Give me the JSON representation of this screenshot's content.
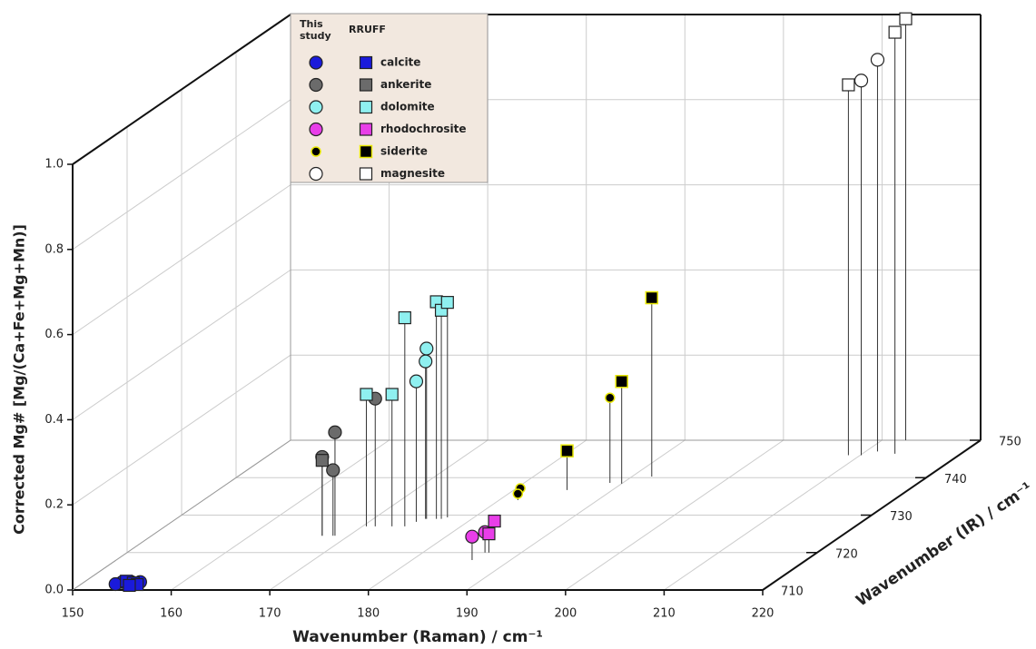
{
  "chart_data": {
    "type": "scatter3d",
    "xlabel": "Wavenumber (Raman) / cm⁻¹",
    "ylabel": "Wavenumber (IR) / cm⁻¹",
    "zlabel": "Corrected Mg# [Mg/(Ca+Fe+Mg+Mn)]",
    "xlim": [
      150,
      220
    ],
    "xticks": [
      150,
      160,
      170,
      180,
      190,
      200,
      210,
      220
    ],
    "ylim": [
      710,
      750
    ],
    "yticks": [
      710,
      720,
      730,
      740,
      750
    ],
    "zlim": [
      0,
      1
    ],
    "zticks": [
      {
        "value": 0,
        "label": "0.0"
      },
      {
        "value": 0.2,
        "label": "0.2"
      },
      {
        "value": 0.4,
        "label": "0.4"
      },
      {
        "value": 0.6,
        "label": "0.6"
      },
      {
        "value": 0.8,
        "label": "0.8"
      },
      {
        "value": 1,
        "label": "1.0"
      }
    ],
    "grid": true,
    "legend_headers": [
      "This study",
      "RRUFF"
    ],
    "series": [
      {
        "name": "calcite",
        "color": "#1a1adb",
        "this_study": {
          "x": [
            156.3,
            155.4,
            154.5,
            153.8
          ],
          "y": [
            711,
            711,
            711,
            711
          ],
          "z": [
            0.01,
            0.01,
            0.01,
            0.005
          ]
        },
        "rruff": {
          "x": [
            154.9,
            155.6,
            156.0,
            155.2
          ],
          "y": [
            711,
            711,
            711,
            711
          ],
          "z": [
            0.012,
            0.008,
            0.004,
            0.002
          ]
        }
      },
      {
        "name": "ankerite",
        "color": "#6b6b6b",
        "this_study": {
          "x": [
            171.3,
            168.6,
            167.3,
            168.4
          ],
          "y": [
            727,
            724.5,
            724.5,
            724.5
          ],
          "z": [
            0.3,
            0.243,
            0.185,
            0.154
          ]
        },
        "rruff": {
          "x": [
            167.3
          ],
          "y": [
            724.5
          ],
          "z": [
            0.177
          ]
        }
      },
      {
        "name": "dolomite",
        "color": "#8ff0f0",
        "this_study": {
          "x": [
            175.4,
            175.3,
            174.8
          ],
          "y": [
            729,
            729,
            728.2
          ],
          "z": [
            0.4,
            0.37,
            0.33
          ]
        },
        "rruff": {
          "x": [
            174.3,
            176.4,
            176.9,
            177.3,
            173.0,
            170.4
          ],
          "y": [
            727,
            729,
            729,
            729.4,
            727,
            727
          ],
          "z": [
            0.49,
            0.51,
            0.49,
            0.505,
            0.31,
            0.31
          ]
        }
      },
      {
        "name": "rhodochrosite",
        "color": "#e83ee8",
        "this_study": {
          "x": [
            186.3,
            186.1
          ],
          "y": [
            720,
            718
          ],
          "z": [
            0.048,
            0.055
          ]
        },
        "rruff": {
          "x": [
            184.5,
            186.7
          ],
          "y": [
            725,
            720
          ],
          "z": [
            0.03,
            0.044
          ]
        }
      },
      {
        "name": "siderite",
        "color": "#000000",
        "this_study": {
          "x": [
            188.7,
            181.6,
            181.9
          ],
          "y": [
            738.6,
            735,
            734
          ],
          "z": [
            0.2,
            0.019,
            0.015
          ]
        },
        "rruff": {
          "x": [
            192,
            190,
            185.4
          ],
          "y": [
            740.3,
            738.4,
            736.7
          ],
          "z": [
            0.42,
            0.24,
            0.092
          ]
        }
      },
      {
        "name": "magnesite",
        "color": "#ffffff",
        "this_study": {
          "x": [
            211.2,
            210.1
          ],
          "y": [
            747,
            746
          ],
          "z": [
            0.92,
            0.88
          ]
        },
        "rruff": {
          "x": [
            212.4,
            213.3,
            208.8
          ],
          "y": [
            750,
            746.4,
            746
          ],
          "z": [
            0.99,
            0.99,
            0.87
          ]
        }
      }
    ]
  }
}
